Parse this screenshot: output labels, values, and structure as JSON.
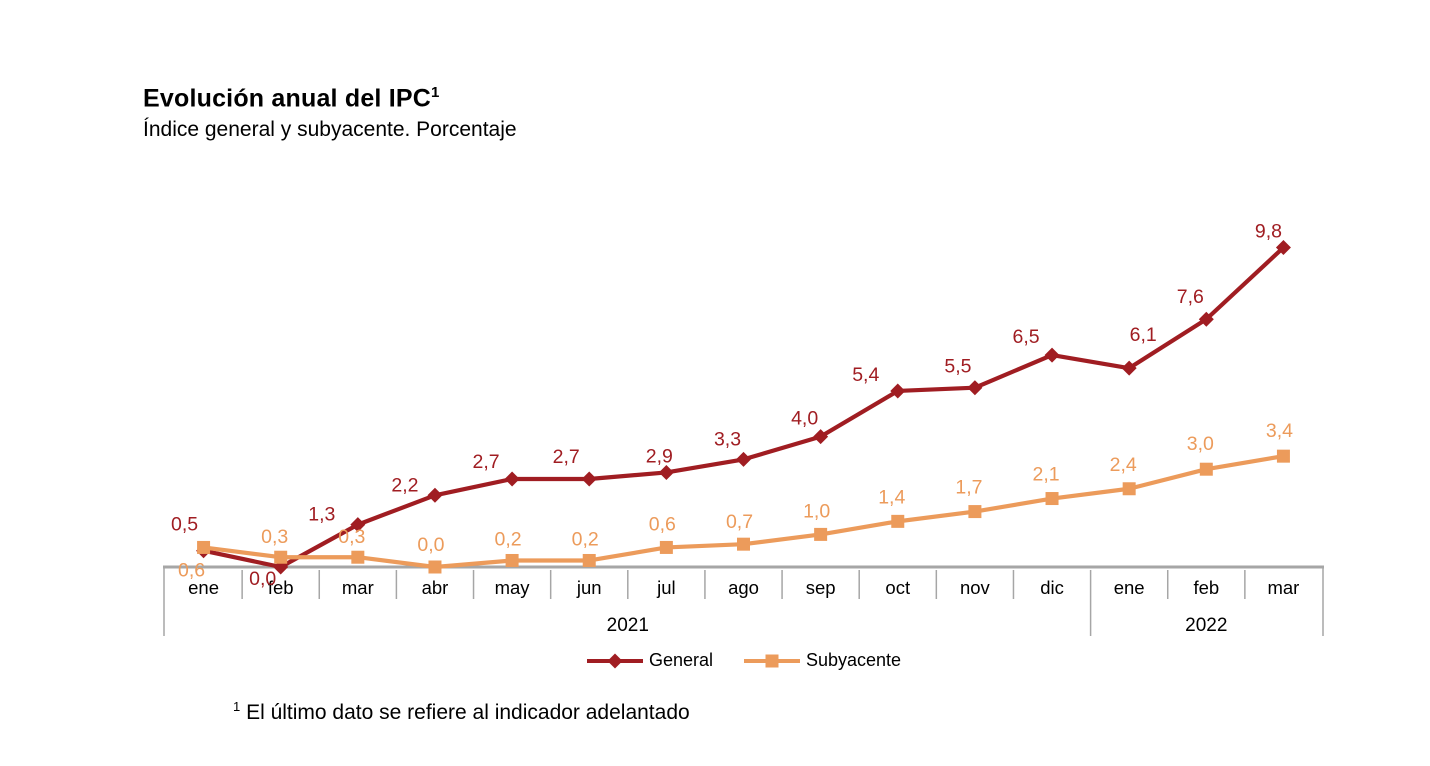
{
  "header": {
    "title": "Evolución anual del IPC",
    "title_sup": "1",
    "subtitle": "Índice general y subyacente. Porcentaje"
  },
  "footnote": {
    "sup": "1",
    "text": "El último dato se refiere al indicador adelantado"
  },
  "colors": {
    "general": "#A01D22",
    "subyacente": "#EC9B5B",
    "axis": "#A6A6A6",
    "axis_text": "#000000"
  },
  "chart_data": {
    "type": "line",
    "title": "Evolución anual del IPC",
    "subtitle": "Índice general y subyacente. Porcentaje",
    "categories": [
      "ene",
      "feb",
      "mar",
      "abr",
      "may",
      "jun",
      "jul",
      "ago",
      "sep",
      "oct",
      "nov",
      "dic",
      "ene",
      "feb",
      "mar"
    ],
    "x_axis_years": [
      {
        "label": "2021",
        "from": 0,
        "to": 11
      },
      {
        "label": "2022",
        "from": 12,
        "to": 14
      }
    ],
    "series": [
      {
        "name": "General",
        "marker": "diamond",
        "color": "#A01D22",
        "values": [
          0.5,
          0.0,
          1.3,
          2.2,
          2.7,
          2.7,
          2.9,
          3.3,
          4.0,
          5.4,
          5.5,
          6.5,
          6.1,
          7.6,
          9.8
        ]
      },
      {
        "name": "Subyacente",
        "marker": "square",
        "color": "#EC9B5B",
        "values": [
          0.6,
          0.3,
          0.3,
          0.0,
          0.2,
          0.2,
          0.6,
          0.7,
          1.0,
          1.4,
          1.7,
          2.1,
          2.4,
          3.0,
          3.4
        ]
      }
    ],
    "ylim": [
      0,
      11.5
    ],
    "grid": false,
    "y_axis_visible": false,
    "legend_position": "bottom",
    "decimal_separator": ",",
    "value_labels": "shown on every point"
  }
}
